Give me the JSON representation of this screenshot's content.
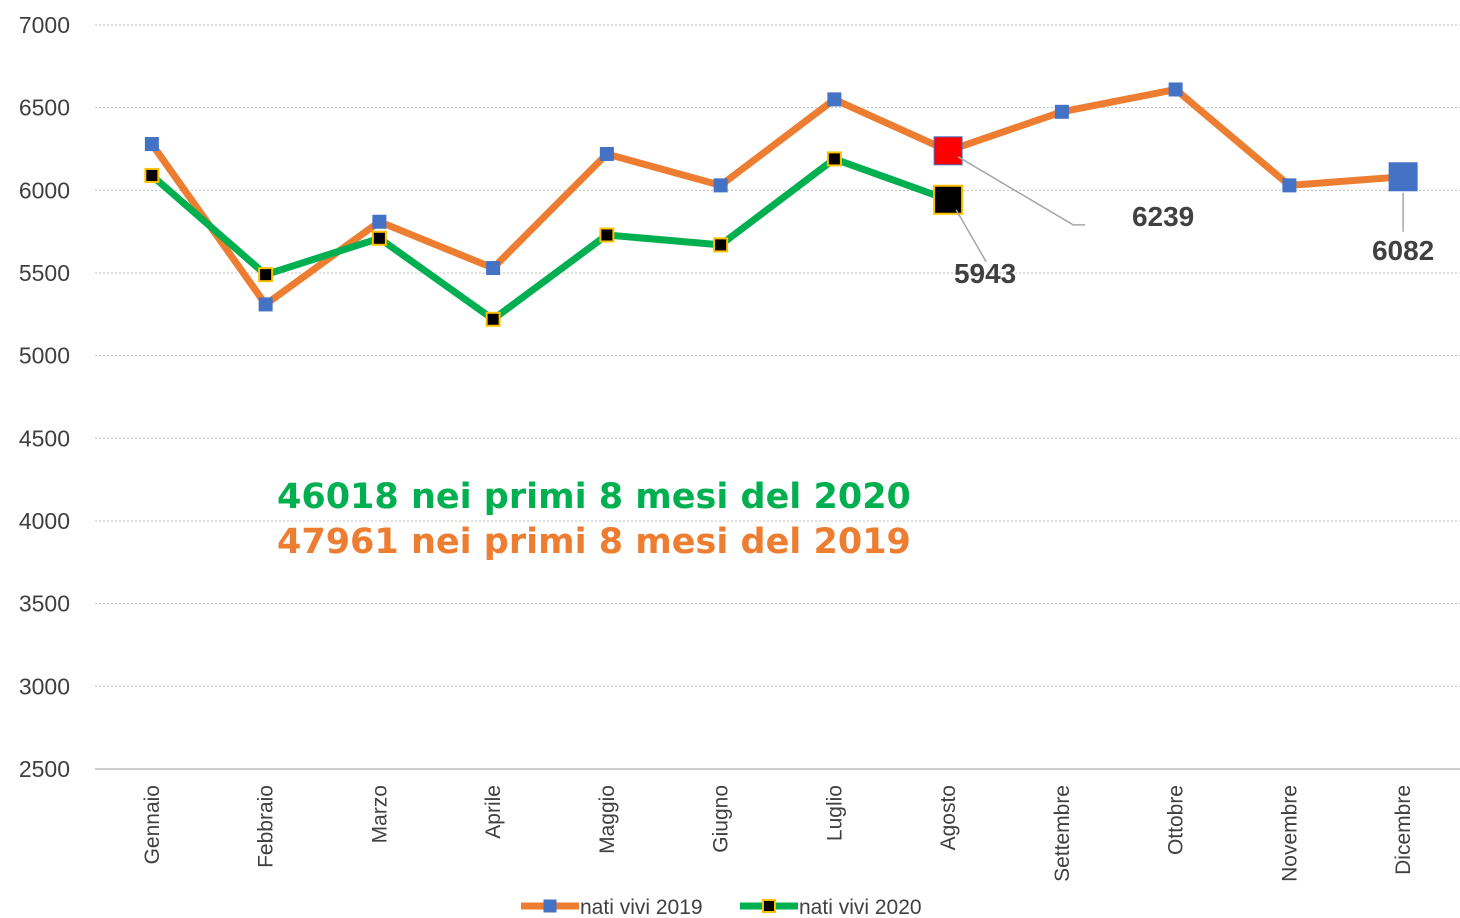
{
  "chart_data": {
    "type": "line",
    "categories": [
      "Gennaio",
      "Febbraio",
      "Marzo",
      "Aprile",
      "Maggio",
      "Giugno",
      "Luglio",
      "Agosto",
      "Settembre",
      "Ottobre",
      "Novembre",
      "Dicembre"
    ],
    "series": [
      {
        "name": "nati vivi 2019",
        "color": "#ed7d31",
        "marker_color": "#4472c4",
        "marker_edge": "#4472c4",
        "values": [
          6280,
          5310,
          5810,
          5530,
          6220,
          6030,
          6550,
          6239,
          6475,
          6610,
          6030,
          6082
        ],
        "label_indices": [
          7,
          11
        ],
        "highlight": {
          "7": "#ff0000",
          "11": "#4472c4"
        }
      },
      {
        "name": "nati vivi 2020",
        "color": "#00b050",
        "marker_color": "#000000",
        "marker_edge": "#ffc000",
        "values": [
          6090,
          5490,
          5710,
          5220,
          5730,
          5670,
          6190,
          5943,
          null,
          null,
          null,
          null
        ],
        "label_indices": [
          7
        ],
        "highlight": {
          "7": "#000000"
        }
      }
    ],
    "annotations": [
      {
        "text": "46018 nei primi 8 mesi del 2020",
        "color": "#00b050"
      },
      {
        "text": "47961 nei primi 8 mesi del 2019",
        "color": "#ed7d31"
      }
    ],
    "ylim": [
      2500,
      7000
    ],
    "yticks": [
      2500,
      3000,
      3500,
      4000,
      4500,
      5000,
      5500,
      6000,
      6500,
      7000
    ],
    "grid": true,
    "legend": "bottom"
  }
}
